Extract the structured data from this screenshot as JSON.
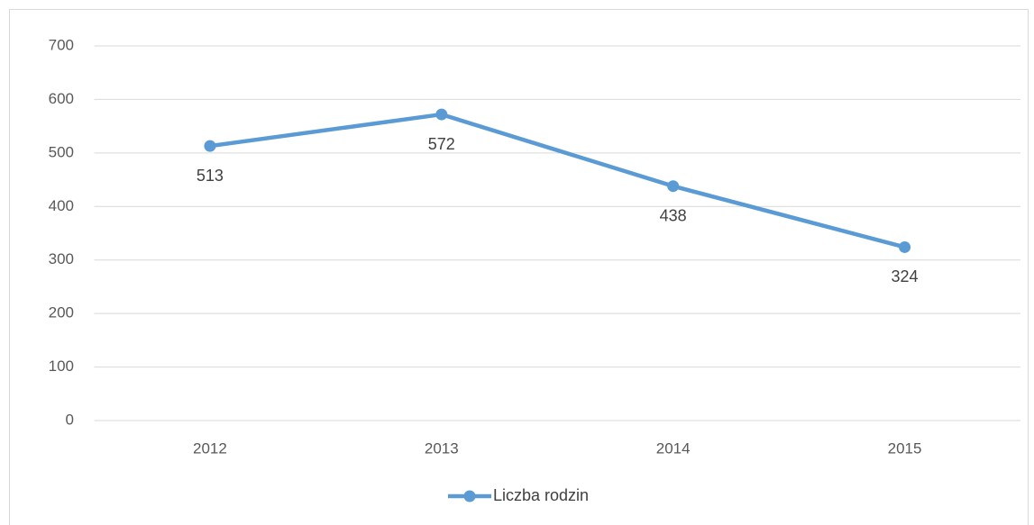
{
  "chart_data": {
    "type": "line",
    "categories": [
      "2012",
      "2013",
      "2014",
      "2015"
    ],
    "series": [
      {
        "name": "Liczba rodzin",
        "color": "#5b9bd5",
        "values": [
          513,
          572,
          438,
          324
        ]
      }
    ],
    "ylim": [
      0,
      700
    ],
    "yticks": [
      0,
      100,
      200,
      300,
      400,
      500,
      600,
      700
    ],
    "grid": true,
    "legend": "bottom"
  }
}
